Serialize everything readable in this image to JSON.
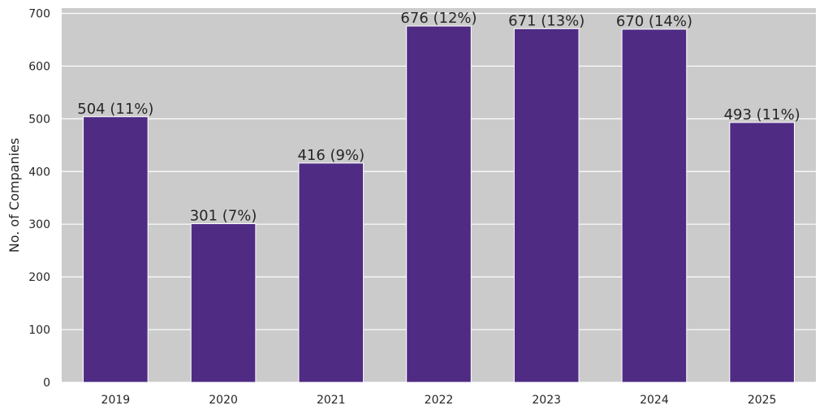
{
  "chart_data": {
    "type": "bar",
    "title": "",
    "xlabel": "",
    "ylabel": "No. of Companies",
    "categories": [
      "2019",
      "2020",
      "2021",
      "2022",
      "2023",
      "2024",
      "2025"
    ],
    "values": [
      504,
      301,
      416,
      676,
      671,
      670,
      493
    ],
    "data_labels": [
      "504 (11%)",
      "301 (7%)",
      "416 (9%)",
      "676 (12%)",
      "671 (13%)",
      "670 (14%)",
      "493 (11%)"
    ],
    "ylim": [
      0,
      710
    ],
    "yticks": [
      0,
      100,
      200,
      300,
      400,
      500,
      600,
      700
    ],
    "grid": true,
    "colors": {
      "bar": "#4f2b84",
      "plot_background": "#cbcbcb",
      "grid": "#ffffff",
      "text": "#262626"
    }
  }
}
